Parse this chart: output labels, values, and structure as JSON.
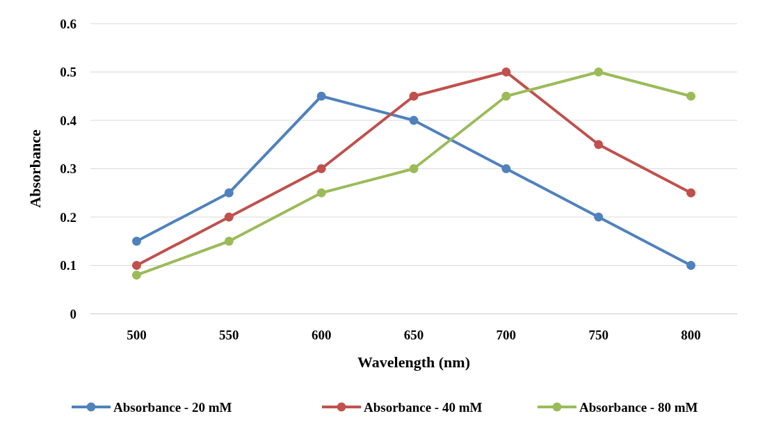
{
  "chart_data": {
    "type": "line",
    "xlabel": "Wavelength (nm)",
    "ylabel": "Absorbance",
    "categories": [
      "500",
      "550",
      "600",
      "650",
      "700",
      "750",
      "800"
    ],
    "series": [
      {
        "name": "Absorbance - 20 mM",
        "color": "#4f81bd",
        "values": [
          0.15,
          0.25,
          0.45,
          0.4,
          0.3,
          0.2,
          0.1
        ]
      },
      {
        "name": "Absorbance - 40 mM",
        "color": "#c0504d",
        "values": [
          0.1,
          0.2,
          0.3,
          0.45,
          0.5,
          0.35,
          0.25
        ]
      },
      {
        "name": "Absorbance - 80 mM",
        "color": "#9bbb59",
        "values": [
          0.08,
          0.15,
          0.25,
          0.3,
          0.45,
          0.5,
          0.45
        ]
      }
    ],
    "ylim": [
      0,
      0.6
    ],
    "yticks": [
      0,
      0.1,
      0.2,
      0.3,
      0.4,
      0.5,
      0.6
    ],
    "grid": "y",
    "legend": "bottom",
    "marker": "circle",
    "line_style": "solid"
  }
}
